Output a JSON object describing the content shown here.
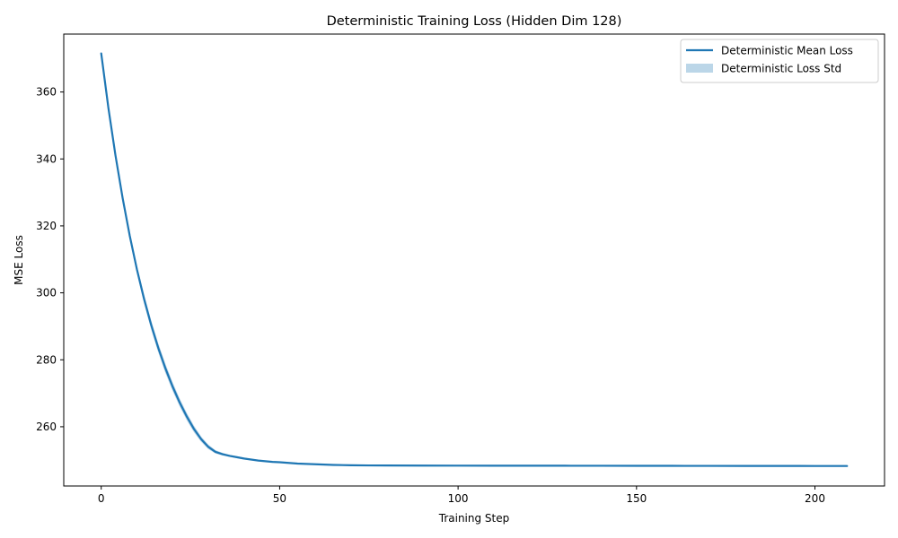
{
  "chart_data": {
    "type": "line",
    "title": "Deterministic Training Loss (Hidden Dim 128)",
    "xlabel": "Training Step",
    "ylabel": "MSE Loss",
    "xlim": [
      -10.5,
      219.5
    ],
    "ylim": [
      242.3,
      377.3
    ],
    "xticks": [
      0,
      50,
      100,
      150,
      200
    ],
    "yticks": [
      260,
      280,
      300,
      320,
      340,
      360
    ],
    "grid": false,
    "legend_position": "top-right",
    "colors": {
      "line": "#1f77b4",
      "band": "#1f77b4",
      "band_opacity": 0.3
    },
    "series": [
      {
        "name": "Deterministic Mean Loss",
        "kind": "line",
        "x": [
          0,
          2,
          4,
          6,
          8,
          10,
          12,
          14,
          16,
          18,
          20,
          22,
          24,
          26,
          28,
          30,
          32,
          34,
          36,
          38,
          40,
          42,
          44,
          46,
          48,
          50,
          55,
          60,
          65,
          70,
          75,
          80,
          90,
          100,
          110,
          120,
          130,
          140,
          150,
          160,
          170,
          180,
          190,
          200,
          209
        ],
        "y": [
          371.5,
          355.3,
          341.0,
          328.3,
          317.0,
          307.0,
          298.2,
          290.4,
          283.5,
          277.4,
          272.0,
          267.2,
          263.0,
          259.3,
          256.3,
          254.0,
          252.5,
          251.8,
          251.3,
          250.9,
          250.5,
          250.2,
          249.9,
          249.7,
          249.5,
          249.4,
          249.0,
          248.8,
          248.6,
          248.5,
          248.45,
          248.42,
          248.4,
          248.38,
          248.37,
          248.36,
          248.35,
          248.34,
          248.33,
          248.32,
          248.31,
          248.3,
          248.29,
          248.28,
          248.27
        ]
      },
      {
        "name": "Deterministic Loss Std",
        "kind": "band",
        "x": [
          0,
          2,
          4,
          6,
          8,
          10,
          12,
          14,
          16,
          18,
          20,
          22,
          24,
          26,
          28,
          30,
          32,
          34,
          36,
          38,
          40,
          42,
          44,
          46,
          48,
          50,
          55,
          60,
          65,
          70,
          75,
          80,
          90,
          100,
          110,
          120,
          130,
          140,
          150,
          160,
          170,
          180,
          190,
          200,
          209
        ],
        "upper": [
          371.6,
          355.8,
          341.7,
          329.2,
          318.1,
          308.2,
          299.6,
          291.8,
          284.9,
          278.8,
          273.3,
          268.4,
          264.1,
          260.3,
          257.1,
          254.7,
          253.0,
          252.2,
          251.6,
          251.2,
          250.8,
          250.4,
          250.1,
          249.9,
          249.7,
          249.5,
          249.1,
          248.9,
          248.65,
          248.55,
          248.48,
          248.44,
          248.41,
          248.39,
          248.38,
          248.37,
          248.36,
          248.35,
          248.34,
          248.33,
          248.32,
          248.31,
          248.3,
          248.29,
          248.28
        ],
        "lower": [
          371.4,
          354.8,
          340.3,
          327.4,
          315.9,
          305.8,
          296.8,
          289.0,
          282.1,
          276.0,
          270.7,
          266.0,
          261.9,
          258.3,
          255.5,
          253.3,
          252.0,
          251.4,
          251.0,
          250.6,
          250.2,
          250.0,
          249.7,
          249.5,
          249.3,
          249.3,
          248.9,
          248.7,
          248.55,
          248.45,
          248.42,
          248.4,
          248.39,
          248.37,
          248.36,
          248.35,
          248.34,
          248.33,
          248.32,
          248.31,
          248.3,
          248.29,
          248.28,
          248.27,
          248.26
        ]
      }
    ]
  }
}
